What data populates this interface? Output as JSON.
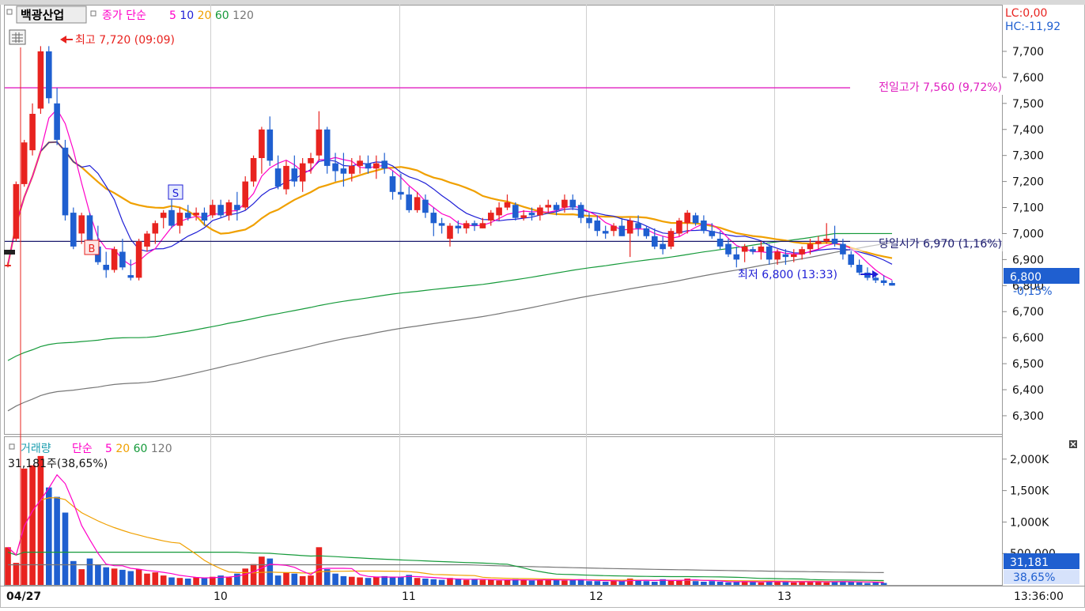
{
  "price_panel": {
    "stock_name": "백광산업",
    "legend_prefix": "종가 단순",
    "ma_labels": [
      {
        "text": "5",
        "color": "#ff00c8"
      },
      {
        "text": "10",
        "color": "#1f1fd6"
      },
      {
        "text": "20",
        "color": "#f0a000"
      },
      {
        "text": "60",
        "color": "#159a3a"
      },
      {
        "text": "120",
        "color": "#777777"
      }
    ],
    "lc_text": "LC:0,00",
    "hc_text": "HC:-11,92",
    "high_label": "최고 7,720 (09:09)",
    "low_label": "최저 6,800 (13:33)",
    "prev_high_label": "전일고가 7,560 (9,72%)",
    "open_label": "당일시가 6,970 (1,16%)",
    "current_price": "6,800",
    "current_change": "-0,15%",
    "y_ticks": [
      "7,700",
      "7,600",
      "7,500",
      "7,400",
      "7,300",
      "7,200",
      "7,100",
      "7,000",
      "6,900",
      "6,800",
      "6,700",
      "6,600",
      "6,500",
      "6,400",
      "6,300"
    ],
    "marker_b": "B",
    "marker_s": "S"
  },
  "volume_panel": {
    "legend_title": "거래량",
    "legend_prefix": "단순",
    "ma_labels": [
      {
        "text": "5",
        "color": "#ff00c8"
      },
      {
        "text": "20",
        "color": "#f0a000"
      },
      {
        "text": "60",
        "color": "#159a3a"
      },
      {
        "text": "120",
        "color": "#777777"
      }
    ],
    "volume_info": "31,181주(38,65%)",
    "y_ticks": [
      "2,000K",
      "1,500K",
      "1,000K",
      "500,000"
    ],
    "current_volume": "31,181",
    "current_ratio": "38,65%"
  },
  "x_axis": {
    "labels": [
      "04/27",
      "10",
      "11",
      "12",
      "13"
    ],
    "time": "13:36:00"
  },
  "chart_data": {
    "type": "candlestick",
    "colors": {
      "up": "#e8231f",
      "down": "#1f5fd0",
      "ma5": "#ff00c8",
      "ma10": "#1f1fd6",
      "ma20": "#f0a000",
      "ma60": "#159a3a",
      "ma120": "#777777",
      "prev_high_line": "#e020c0",
      "open_line": "#1a1a6e"
    },
    "price_range": [
      6230,
      7870
    ],
    "volume_range": [
      0,
      2350
    ],
    "prev_high": 7560,
    "open_price": 6970,
    "high": 7720,
    "low": 6800,
    "ohlc": [
      [
        6880,
        6890,
        6870,
        6880
      ],
      [
        6980,
        7200,
        6970,
        7190
      ],
      [
        7190,
        7360,
        7180,
        7350
      ],
      [
        7320,
        7500,
        7300,
        7460
      ],
      [
        7480,
        7720,
        7460,
        7700
      ],
      [
        7700,
        7720,
        7500,
        7520
      ],
      [
        7500,
        7560,
        7340,
        7360
      ],
      [
        7330,
        7360,
        7050,
        7070
      ],
      [
        7080,
        7100,
        6940,
        6950
      ],
      [
        7000,
        7080,
        6960,
        7070
      ],
      [
        7070,
        7080,
        6930,
        6940
      ],
      [
        6950,
        7030,
        6880,
        6890
      ],
      [
        6880,
        6930,
        6830,
        6860
      ],
      [
        6860,
        6950,
        6850,
        6940
      ],
      [
        6930,
        6980,
        6860,
        6870
      ],
      [
        6840,
        6900,
        6820,
        6830
      ],
      [
        6830,
        6980,
        6820,
        6970
      ],
      [
        6950,
        7010,
        6930,
        7000
      ],
      [
        7000,
        7050,
        6960,
        7040
      ],
      [
        7060,
        7090,
        7020,
        7080
      ],
      [
        7090,
        7130,
        7020,
        7030
      ],
      [
        7030,
        7100,
        7000,
        7080
      ],
      [
        7080,
        7110,
        7050,
        7060
      ],
      [
        7070,
        7100,
        7050,
        7080
      ],
      [
        7080,
        7100,
        7030,
        7050
      ],
      [
        7070,
        7130,
        7060,
        7110
      ],
      [
        7110,
        7130,
        7060,
        7070
      ],
      [
        7070,
        7130,
        7050,
        7120
      ],
      [
        7110,
        7160,
        7050,
        7090
      ],
      [
        7100,
        7220,
        7090,
        7200
      ],
      [
        7200,
        7300,
        7180,
        7290
      ],
      [
        7290,
        7410,
        7230,
        7400
      ],
      [
        7400,
        7450,
        7260,
        7280
      ],
      [
        7250,
        7300,
        7170,
        7180
      ],
      [
        7170,
        7280,
        7150,
        7260
      ],
      [
        7250,
        7300,
        7180,
        7200
      ],
      [
        7200,
        7290,
        7160,
        7270
      ],
      [
        7270,
        7310,
        7230,
        7290
      ],
      [
        7300,
        7470,
        7280,
        7400
      ],
      [
        7400,
        7410,
        7230,
        7260
      ],
      [
        7270,
        7310,
        7200,
        7240
      ],
      [
        7250,
        7310,
        7180,
        7230
      ],
      [
        7230,
        7290,
        7200,
        7260
      ],
      [
        7260,
        7300,
        7230,
        7280
      ],
      [
        7270,
        7300,
        7230,
        7250
      ],
      [
        7250,
        7300,
        7210,
        7270
      ],
      [
        7280,
        7310,
        7230,
        7250
      ],
      [
        7220,
        7240,
        7130,
        7160
      ],
      [
        7160,
        7230,
        7130,
        7150
      ],
      [
        7150,
        7180,
        7080,
        7090
      ],
      [
        7090,
        7160,
        7080,
        7140
      ],
      [
        7130,
        7150,
        7060,
        7080
      ],
      [
        7080,
        7100,
        6990,
        7040
      ],
      [
        7040,
        7060,
        7000,
        7030
      ],
      [
        6980,
        7040,
        6950,
        7030
      ],
      [
        7030,
        7050,
        7000,
        7020
      ],
      [
        7020,
        7050,
        7000,
        7040
      ],
      [
        7040,
        7050,
        7010,
        7030
      ],
      [
        7020,
        7060,
        7020,
        7040
      ],
      [
        7050,
        7090,
        7030,
        7080
      ],
      [
        7070,
        7120,
        7050,
        7100
      ],
      [
        7100,
        7150,
        7090,
        7120
      ],
      [
        7110,
        7120,
        7050,
        7060
      ],
      [
        7060,
        7090,
        7050,
        7070
      ],
      [
        7080,
        7100,
        7050,
        7070
      ],
      [
        7070,
        7110,
        7050,
        7100
      ],
      [
        7100,
        7130,
        7080,
        7110
      ],
      [
        7110,
        7120,
        7070,
        7090
      ],
      [
        7100,
        7150,
        7080,
        7130
      ],
      [
        7130,
        7150,
        7090,
        7100
      ],
      [
        7110,
        7120,
        7040,
        7060
      ],
      [
        7060,
        7080,
        7020,
        7040
      ],
      [
        7050,
        7070,
        6990,
        7010
      ],
      [
        7010,
        7030,
        6980,
        7000
      ],
      [
        7010,
        7040,
        6990,
        7030
      ],
      [
        7030,
        7060,
        6990,
        6990
      ],
      [
        7000,
        7060,
        6910,
        7050
      ],
      [
        7040,
        7070,
        6990,
        7020
      ],
      [
        7020,
        7030,
        6980,
        6990
      ],
      [
        6990,
        7020,
        6940,
        6950
      ],
      [
        6960,
        6990,
        6920,
        6940
      ],
      [
        6950,
        7020,
        6940,
        7010
      ],
      [
        7000,
        7060,
        6990,
        7050
      ],
      [
        7040,
        7090,
        7000,
        7080
      ],
      [
        7070,
        7080,
        7030,
        7040
      ],
      [
        7050,
        7070,
        7000,
        7010
      ],
      [
        7010,
        7040,
        6980,
        6990
      ],
      [
        6980,
        7010,
        6940,
        6950
      ],
      [
        6960,
        6980,
        6910,
        6920
      ],
      [
        6920,
        6950,
        6870,
        6900
      ],
      [
        6930,
        6960,
        6890,
        6950
      ],
      [
        6940,
        6950,
        6920,
        6930
      ],
      [
        6930,
        6970,
        6900,
        6950
      ],
      [
        6950,
        6960,
        6880,
        6900
      ],
      [
        6900,
        6940,
        6880,
        6930
      ],
      [
        6920,
        6940,
        6880,
        6910
      ],
      [
        6910,
        6940,
        6890,
        6920
      ],
      [
        6920,
        6950,
        6900,
        6940
      ],
      [
        6940,
        6980,
        6920,
        6960
      ],
      [
        6960,
        6990,
        6940,
        6970
      ],
      [
        6970,
        7040,
        6960,
        6980
      ],
      [
        6980,
        7030,
        6950,
        6960
      ],
      [
        6960,
        6980,
        6900,
        6920
      ],
      [
        6920,
        6940,
        6870,
        6880
      ],
      [
        6880,
        6900,
        6840,
        6850
      ],
      [
        6850,
        6870,
        6820,
        6830
      ],
      [
        6830,
        6850,
        6810,
        6820
      ],
      [
        6820,
        6840,
        6800,
        6810
      ],
      [
        6810,
        6820,
        6800,
        6800
      ]
    ],
    "volume": [
      600,
      350,
      1850,
      1900,
      2050,
      1550,
      1400,
      1150,
      380,
      250,
      420,
      320,
      280,
      260,
      240,
      220,
      250,
      180,
      200,
      150,
      120,
      110,
      100,
      120,
      110,
      130,
      150,
      120,
      180,
      260,
      330,
      450,
      420,
      150,
      200,
      180,
      140,
      150,
      600,
      250,
      180,
      140,
      130,
      120,
      110,
      130,
      140,
      120,
      130,
      160,
      110,
      100,
      90,
      80,
      110,
      90,
      80,
      90,
      80,
      80,
      70,
      80,
      90,
      80,
      70,
      80,
      90,
      80,
      70,
      80,
      90,
      60,
      60,
      50,
      70,
      60,
      100,
      80,
      60,
      50,
      90,
      70,
      80,
      100,
      60,
      50,
      60,
      50,
      40,
      50,
      60,
      50,
      40,
      60,
      50,
      50,
      40,
      50,
      60,
      50,
      40,
      50,
      60,
      50,
      40,
      30,
      40,
      31
    ]
  }
}
